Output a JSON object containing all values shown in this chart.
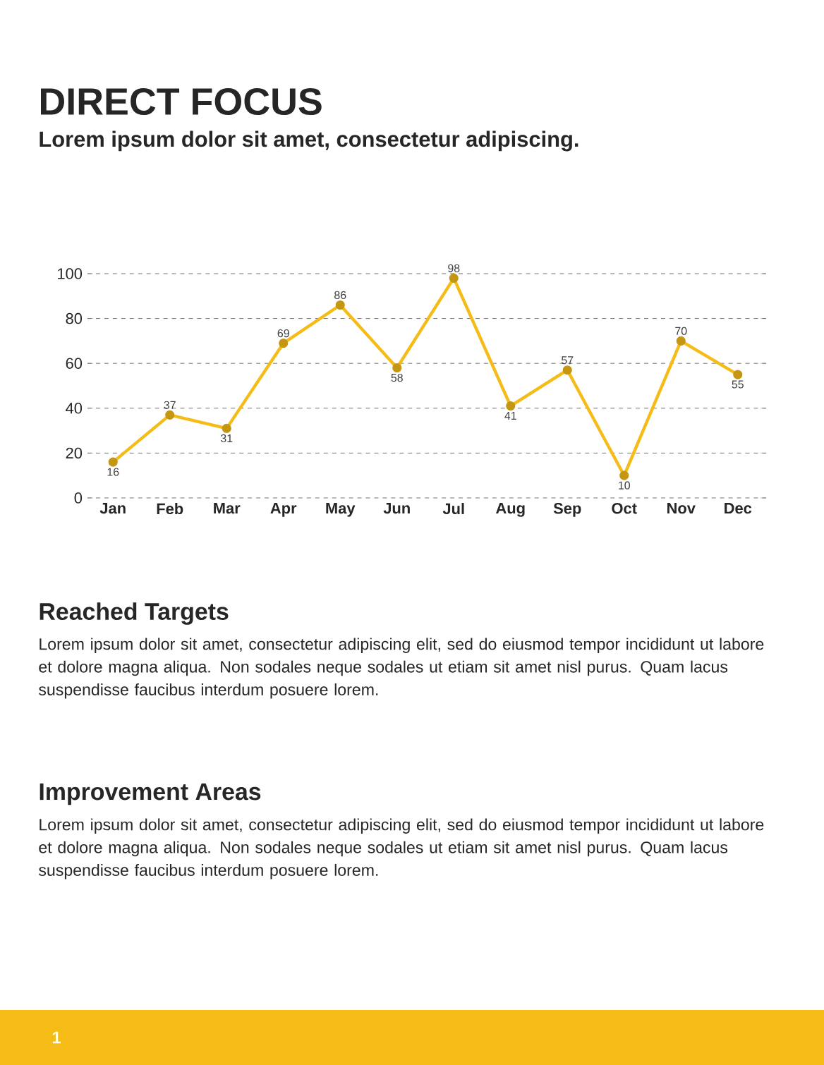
{
  "chart_data": {
    "type": "line",
    "title": "DIRECT FOCUS",
    "subtitle": "Lorem ipsum dolor sit amet, consectetur adipiscing.",
    "categories": [
      "Jan",
      "Feb",
      "Mar",
      "Apr",
      "May",
      "Jun",
      "Jul",
      "Aug",
      "Sep",
      "Oct",
      "Nov",
      "Dec"
    ],
    "series": [
      {
        "color": "#f5bb16",
        "values": [
          16,
          37,
          31,
          69,
          86,
          58,
          98,
          41,
          57,
          10,
          70,
          55
        ]
      }
    ],
    "ylim": [
      0,
      100
    ],
    "yticks": [
      0,
      20,
      40,
      60,
      80,
      100
    ],
    "grid": "y",
    "marker": "circle",
    "line_style": "solid",
    "data_labels": true,
    "annotations": [
      "Reached Targets",
      "Lorem ipsum dolor sit amet, consectetur adipiscing elit, sed do eiusmod tempor incididunt ut labore et dolore magna aliqua. Non sodales neque sodales ut etiam sit amet nisl purus. Quam lacus suspendisse faucibus interdum posuere lorem.",
      "Improvement Areas",
      "Lorem ipsum dolor sit amet, consectetur adipiscing elit, sed do eiusmod tempor incididunt ut labore et dolore magna aliqua. Non sodales neque sodales ut etiam sit amet nisl purus. Quam lacus suspendisse faucibus interdum posuere lorem.",
      "1"
    ]
  }
}
